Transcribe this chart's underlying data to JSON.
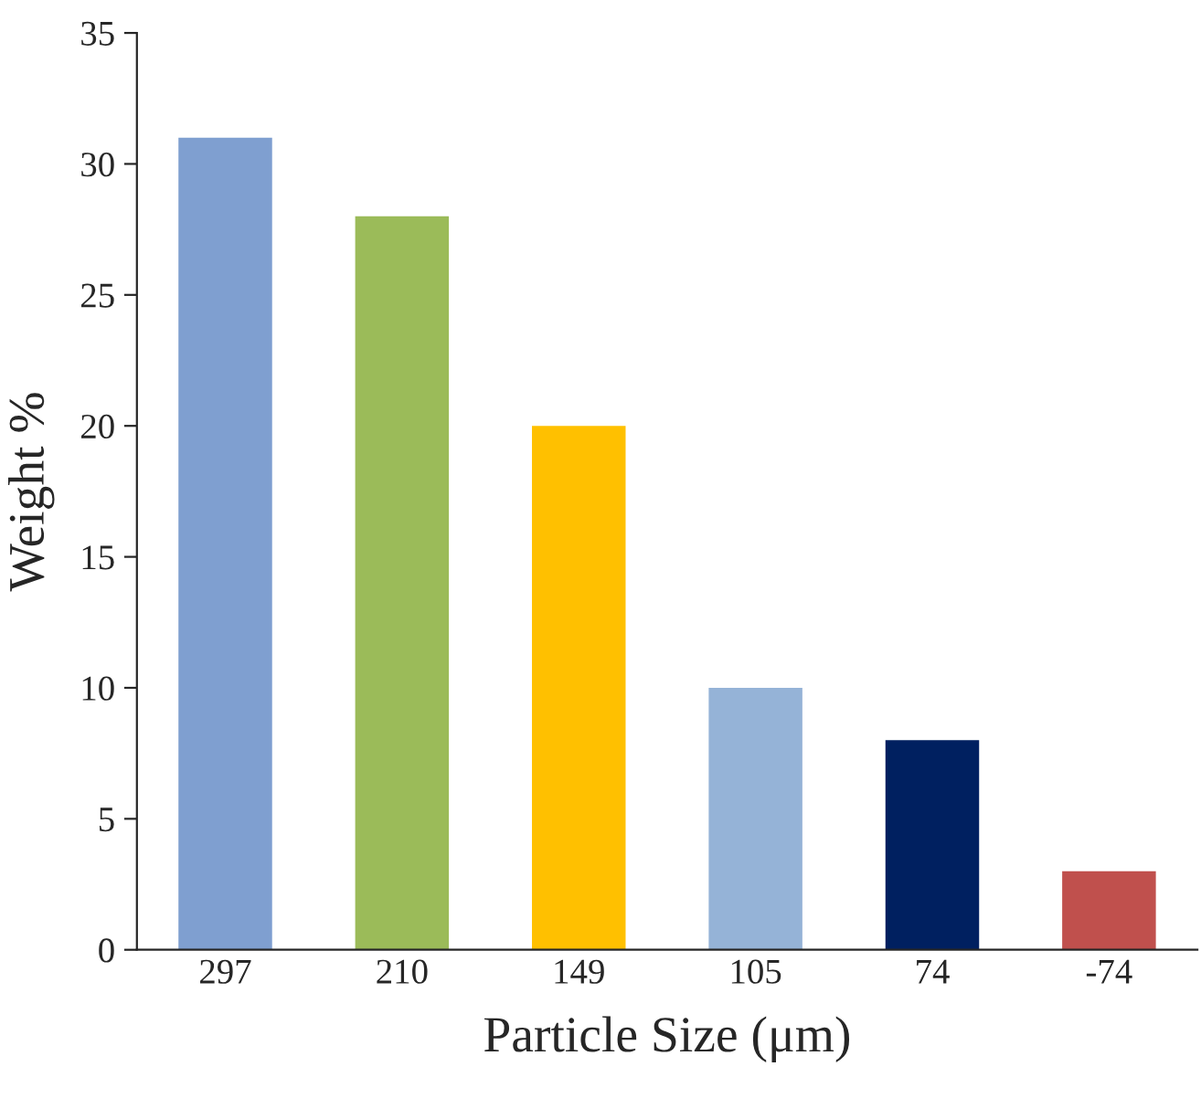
{
  "chart_data": {
    "type": "bar",
    "xlabel": "Particle Size (μm)",
    "ylabel": "Weight %",
    "categories": [
      "297",
      "210",
      "149",
      "105",
      "74",
      "-74"
    ],
    "values": [
      31,
      28,
      20,
      10,
      8,
      3
    ],
    "colors": [
      "#7f9fd0",
      "#9bbb59",
      "#ffc000",
      "#95b3d7",
      "#002060",
      "#c0504d"
    ],
    "ylim": [
      0,
      35
    ],
    "yticks": [
      0,
      5,
      10,
      15,
      20,
      25,
      30,
      35
    ],
    "grid": false
  }
}
